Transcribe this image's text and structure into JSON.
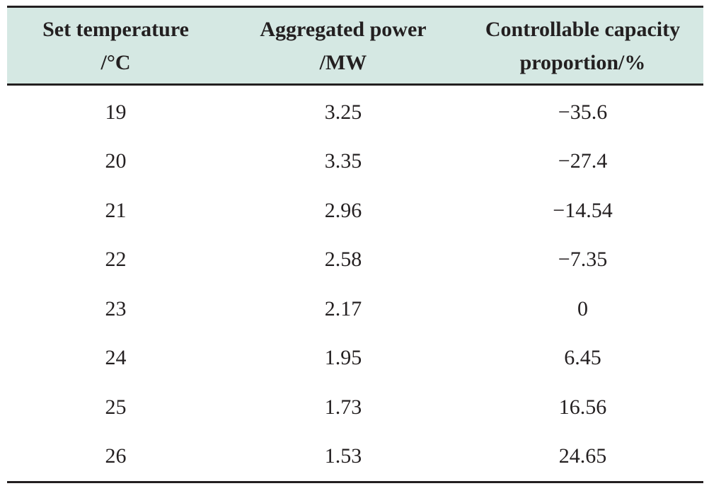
{
  "table": {
    "headers": [
      [
        "Set temperature",
        "/°C"
      ],
      [
        "Aggregated power",
        "/MW"
      ],
      [
        "Controllable capacity",
        "proportion/%"
      ]
    ],
    "rows": [
      [
        "19",
        "3.25",
        "−35.6"
      ],
      [
        "20",
        "3.35",
        "−27.4"
      ],
      [
        "21",
        "2.96",
        "−14.54"
      ],
      [
        "22",
        "2.58",
        "−7.35"
      ],
      [
        "23",
        "2.17",
        "0"
      ],
      [
        "24",
        "1.95",
        "6.45"
      ],
      [
        "25",
        "1.73",
        "16.56"
      ],
      [
        "26",
        "1.53",
        "24.65"
      ]
    ],
    "header_bg": "#d5e8e3",
    "rule_color": "#231f20"
  }
}
